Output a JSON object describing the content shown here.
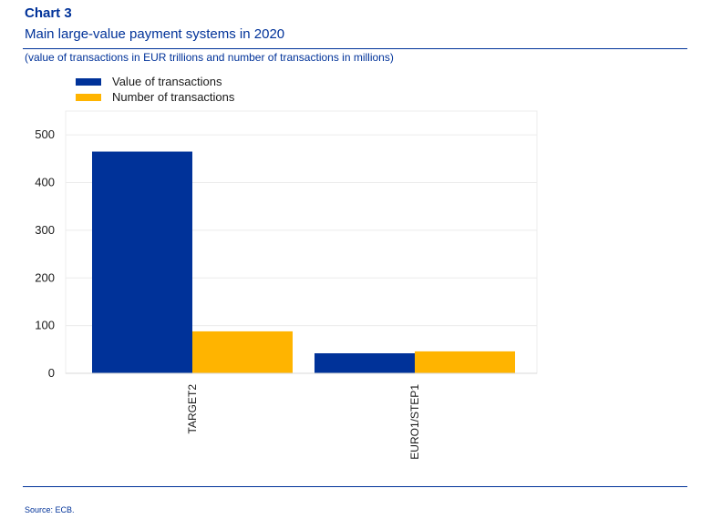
{
  "header": {
    "chart_label": "Chart 3",
    "title": "Main large-value payment systems in 2020",
    "subtitle": "(value of transactions in EUR trillions and number of transactions in millions)"
  },
  "footer": {
    "source": "Source: ECB."
  },
  "colors": {
    "value": "#003299",
    "number": "#FFB400",
    "grid": "#ececec"
  },
  "chart_data": {
    "type": "bar",
    "categories": [
      "TARGET2",
      "EURO1/STEP1"
    ],
    "series": [
      {
        "name": "Value of transactions",
        "values": [
          465,
          42
        ]
      },
      {
        "name": "Number of transactions",
        "values": [
          88,
          46
        ]
      }
    ],
    "ylim": [
      0,
      550
    ],
    "yticks": [
      0,
      100,
      200,
      300,
      400,
      500
    ],
    "grid": true,
    "legend_position": "top-left"
  }
}
